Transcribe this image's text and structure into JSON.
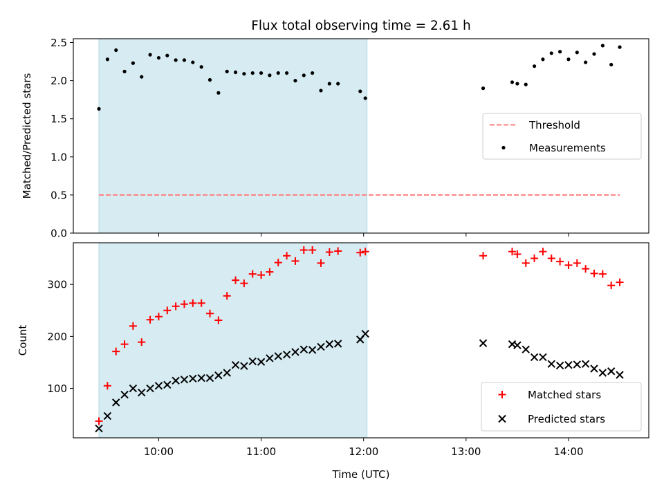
{
  "chart_data": {
    "title": "Flux total observing time = 2.61 h",
    "xlabel": "Time (UTC)",
    "x_ticks": [
      "10:00",
      "11:00",
      "12:00",
      "13:00",
      "14:00"
    ],
    "x_range": [
      "09:10",
      "14:47"
    ],
    "shaded_region": {
      "start": "09:25",
      "end": "12:02",
      "color": "#add8e6"
    },
    "panels": [
      {
        "type": "scatter",
        "ylabel": "Matched/Predicted stars",
        "ylim": [
          0,
          2.55
        ],
        "yticks": [
          "0.0",
          "0.5",
          "1.0",
          "1.5",
          "2.0",
          "2.5"
        ],
        "legend_position": "center-right",
        "series": [
          {
            "name": "Threshold",
            "kind": "dashed-line",
            "color": "#ff7f7f",
            "x": [
              "09:25",
              "14:30"
            ],
            "y": [
              0.5,
              0.5
            ]
          },
          {
            "name": "Measurements",
            "kind": "dot",
            "color": "#000000",
            "x": [
              "09:25",
              "09:30",
              "09:35",
              "09:40",
              "09:45",
              "09:50",
              "09:55",
              "10:00",
              "10:05",
              "10:10",
              "10:15",
              "10:20",
              "10:25",
              "10:30",
              "10:35",
              "10:40",
              "10:45",
              "10:50",
              "10:55",
              "11:00",
              "11:05",
              "11:10",
              "11:15",
              "11:20",
              "11:25",
              "11:30",
              "11:35",
              "11:40",
              "11:45",
              "11:58",
              "12:01",
              "13:10",
              "13:27",
              "13:30",
              "13:35",
              "13:40",
              "13:45",
              "13:50",
              "13:55",
              "14:00",
              "14:05",
              "14:10",
              "14:15",
              "14:20",
              "14:25",
              "14:30"
            ],
            "y": [
              1.63,
              2.28,
              2.4,
              2.12,
              2.23,
              2.05,
              2.34,
              2.3,
              2.33,
              2.27,
              2.27,
              2.24,
              2.18,
              2.01,
              1.84,
              2.12,
              2.11,
              2.09,
              2.1,
              2.1,
              2.07,
              2.1,
              2.1,
              2.0,
              2.07,
              2.1,
              1.87,
              1.96,
              1.96,
              1.86,
              1.77,
              1.9,
              1.98,
              1.96,
              1.95,
              2.19,
              2.28,
              2.36,
              2.38,
              2.28,
              2.37,
              2.24,
              2.35,
              2.46,
              2.21,
              2.44
            ]
          }
        ]
      },
      {
        "type": "scatter",
        "ylabel": "Count",
        "ylim": [
          5,
          380
        ],
        "yticks": [
          "100",
          "200",
          "300"
        ],
        "legend_position": "bottom-right",
        "series": [
          {
            "name": "Matched stars",
            "kind": "plus",
            "color": "#ff0000",
            "x": [
              "09:25",
              "09:30",
              "09:35",
              "09:40",
              "09:45",
              "09:50",
              "09:55",
              "10:00",
              "10:05",
              "10:10",
              "10:15",
              "10:20",
              "10:25",
              "10:30",
              "10:35",
              "10:40",
              "10:45",
              "10:50",
              "10:55",
              "11:00",
              "11:05",
              "11:10",
              "11:15",
              "11:20",
              "11:25",
              "11:30",
              "11:35",
              "11:40",
              "11:45",
              "11:58",
              "12:01",
              "13:10",
              "13:27",
              "13:30",
              "13:35",
              "13:40",
              "13:45",
              "13:50",
              "13:55",
              "14:00",
              "14:05",
              "14:10",
              "14:15",
              "14:20",
              "14:25",
              "14:30"
            ],
            "y": [
              37,
              105,
              171,
              185,
              220,
              189,
              232,
              238,
              250,
              258,
              262,
              264,
              264,
              244,
              231,
              278,
              308,
              302,
              320,
              318,
              324,
              342,
              355,
              345,
              366,
              366,
              341,
              362,
              364,
              361,
              363,
              355,
              363,
              358,
              341,
              350,
              363,
              350,
              344,
              337,
              341,
              330,
              321,
              320,
              298,
              304
            ]
          },
          {
            "name": "Predicted stars",
            "kind": "cross",
            "color": "#000000",
            "x": [
              "09:25",
              "09:30",
              "09:35",
              "09:40",
              "09:45",
              "09:50",
              "09:55",
              "10:00",
              "10:05",
              "10:10",
              "10:15",
              "10:20",
              "10:25",
              "10:30",
              "10:35",
              "10:40",
              "10:45",
              "10:50",
              "10:55",
              "11:00",
              "11:05",
              "11:10",
              "11:15",
              "11:20",
              "11:25",
              "11:30",
              "11:35",
              "11:40",
              "11:45",
              "11:58",
              "12:01",
              "13:10",
              "13:27",
              "13:30",
              "13:35",
              "13:40",
              "13:45",
              "13:50",
              "13:55",
              "14:00",
              "14:05",
              "14:10",
              "14:15",
              "14:20",
              "14:25",
              "14:30"
            ],
            "y": [
              23,
              47,
              73,
              88,
              100,
              92,
              100,
              105,
              107,
              115,
              117,
              119,
              120,
              120,
              125,
              130,
              145,
              143,
              152,
              151,
              158,
              162,
              165,
              170,
              175,
              174,
              180,
              185,
              186,
              194,
              205,
              187,
              185,
              183,
              175,
              160,
              160,
              147,
              144,
              145,
              146,
              147,
              138,
              130,
              133,
              126
            ]
          }
        ]
      }
    ]
  }
}
